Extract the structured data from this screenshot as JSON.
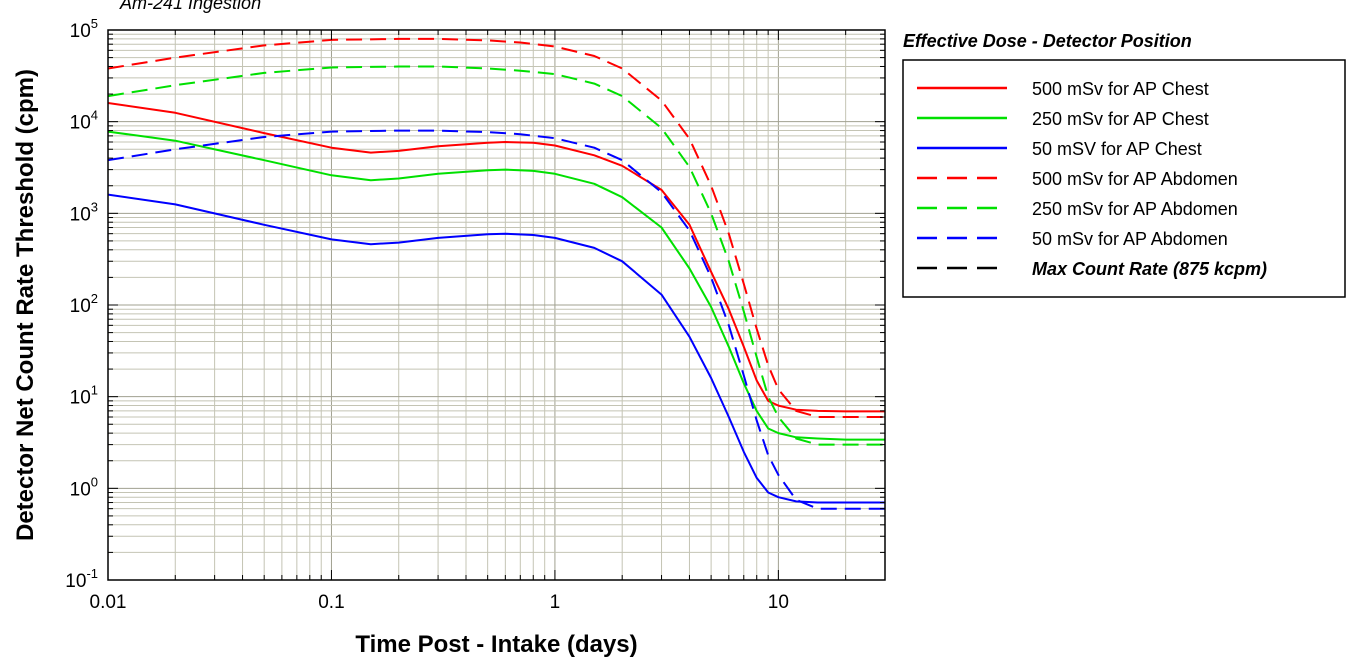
{
  "chart_data": {
    "type": "line",
    "subtitle": "Am-241 Ingestion",
    "xlabel": "Time Post - Intake (days)",
    "ylabel": "Detector Net Count Rate Threshold (cpm)",
    "x_scale": "log",
    "y_scale": "log",
    "xlim": [
      0.01,
      30
    ],
    "ylim": [
      0.1,
      100000
    ],
    "x_ticks": [
      {
        "value": 0.01,
        "label": "0.01"
      },
      {
        "value": 0.1,
        "label": "0.1"
      },
      {
        "value": 1,
        "label": "1"
      },
      {
        "value": 10,
        "label": "10"
      }
    ],
    "y_ticks": [
      {
        "value": 0.1,
        "base": "10",
        "exp": "-1"
      },
      {
        "value": 1,
        "base": "10",
        "exp": "0"
      },
      {
        "value": 10,
        "base": "10",
        "exp": "1"
      },
      {
        "value": 100,
        "base": "10",
        "exp": "2"
      },
      {
        "value": 1000,
        "base": "10",
        "exp": "3"
      },
      {
        "value": 10000,
        "base": "10",
        "exp": "4"
      },
      {
        "value": 100000,
        "base": "10",
        "exp": "5"
      }
    ],
    "grid": true,
    "legend": {
      "title": "Effective Dose - Detector Position",
      "placement": "right"
    },
    "series": [
      {
        "name": "500 mSv for AP Chest",
        "color": "#ff0000",
        "dash": "solid",
        "points": [
          [
            0.01,
            16000
          ],
          [
            0.02,
            12500
          ],
          [
            0.05,
            7500
          ],
          [
            0.1,
            5200
          ],
          [
            0.15,
            4600
          ],
          [
            0.2,
            4800
          ],
          [
            0.3,
            5400
          ],
          [
            0.5,
            5900
          ],
          [
            0.6,
            6000
          ],
          [
            0.8,
            5900
          ],
          [
            1,
            5500
          ],
          [
            1.5,
            4300
          ],
          [
            2,
            3300
          ],
          [
            3,
            1800
          ],
          [
            4,
            750
          ],
          [
            5,
            230
          ],
          [
            6,
            90
          ],
          [
            7,
            35
          ],
          [
            8,
            15
          ],
          [
            9,
            9
          ],
          [
            10,
            8
          ],
          [
            12,
            7.2
          ],
          [
            15,
            7
          ],
          [
            20,
            6.9
          ],
          [
            30,
            6.9
          ]
        ]
      },
      {
        "name": "250 mSv for AP Chest",
        "color": "#00e000",
        "dash": "solid",
        "points": [
          [
            0.01,
            7800
          ],
          [
            0.02,
            6200
          ],
          [
            0.05,
            3800
          ],
          [
            0.1,
            2600
          ],
          [
            0.15,
            2300
          ],
          [
            0.2,
            2400
          ],
          [
            0.3,
            2700
          ],
          [
            0.5,
            2950
          ],
          [
            0.6,
            3000
          ],
          [
            0.8,
            2900
          ],
          [
            1,
            2700
          ],
          [
            1.5,
            2100
          ],
          [
            2,
            1500
          ],
          [
            3,
            700
          ],
          [
            4,
            250
          ],
          [
            5,
            95
          ],
          [
            6,
            35
          ],
          [
            7,
            14
          ],
          [
            8,
            7
          ],
          [
            9,
            4.5
          ],
          [
            10,
            4
          ],
          [
            12,
            3.6
          ],
          [
            15,
            3.5
          ],
          [
            20,
            3.4
          ],
          [
            30,
            3.4
          ]
        ]
      },
      {
        "name": "50 mSV for AP Chest",
        "color": "#0000ff",
        "dash": "solid",
        "points": [
          [
            0.01,
            1600
          ],
          [
            0.02,
            1250
          ],
          [
            0.05,
            750
          ],
          [
            0.1,
            520
          ],
          [
            0.15,
            460
          ],
          [
            0.2,
            480
          ],
          [
            0.3,
            540
          ],
          [
            0.5,
            590
          ],
          [
            0.6,
            600
          ],
          [
            0.8,
            580
          ],
          [
            1,
            540
          ],
          [
            1.5,
            420
          ],
          [
            2,
            300
          ],
          [
            3,
            130
          ],
          [
            4,
            45
          ],
          [
            5,
            16
          ],
          [
            6,
            6
          ],
          [
            7,
            2.5
          ],
          [
            8,
            1.3
          ],
          [
            9,
            0.9
          ],
          [
            10,
            0.8
          ],
          [
            12,
            0.72
          ],
          [
            15,
            0.7
          ],
          [
            20,
            0.7
          ],
          [
            30,
            0.7
          ]
        ]
      },
      {
        "name": "500 mSv for AP Abdomen",
        "color": "#ff0000",
        "dash": "dashed",
        "points": [
          [
            0.01,
            38000
          ],
          [
            0.02,
            50000
          ],
          [
            0.05,
            68000
          ],
          [
            0.1,
            78000
          ],
          [
            0.2,
            80000
          ],
          [
            0.3,
            80000
          ],
          [
            0.5,
            77000
          ],
          [
            0.7,
            73000
          ],
          [
            1,
            66000
          ],
          [
            1.5,
            52000
          ],
          [
            2,
            38000
          ],
          [
            3,
            17000
          ],
          [
            4,
            6500
          ],
          [
            5,
            2000
          ],
          [
            6,
            600
          ],
          [
            7,
            170
          ],
          [
            8,
            55
          ],
          [
            9,
            22
          ],
          [
            10,
            12
          ],
          [
            12,
            7
          ],
          [
            15,
            6
          ],
          [
            20,
            6
          ],
          [
            30,
            6
          ]
        ]
      },
      {
        "name": "250 mSv for AP Abdomen",
        "color": "#00e000",
        "dash": "dashed",
        "points": [
          [
            0.01,
            19000
          ],
          [
            0.02,
            25000
          ],
          [
            0.05,
            34000
          ],
          [
            0.1,
            39000
          ],
          [
            0.2,
            40000
          ],
          [
            0.3,
            40000
          ],
          [
            0.5,
            38000
          ],
          [
            0.7,
            36000
          ],
          [
            1,
            33000
          ],
          [
            1.5,
            26000
          ],
          [
            2,
            19000
          ],
          [
            3,
            8500
          ],
          [
            4,
            3200
          ],
          [
            5,
            1000
          ],
          [
            6,
            300
          ],
          [
            7,
            85
          ],
          [
            8,
            27
          ],
          [
            9,
            10
          ],
          [
            10,
            6
          ],
          [
            12,
            3.5
          ],
          [
            15,
            3
          ],
          [
            20,
            3
          ],
          [
            30,
            3
          ]
        ]
      },
      {
        "name": "50 mSv for AP Abdomen",
        "color": "#0000ff",
        "dash": "dashed",
        "points": [
          [
            0.01,
            3800
          ],
          [
            0.02,
            5000
          ],
          [
            0.05,
            6800
          ],
          [
            0.1,
            7800
          ],
          [
            0.2,
            8000
          ],
          [
            0.3,
            8000
          ],
          [
            0.5,
            7700
          ],
          [
            0.7,
            7300
          ],
          [
            1,
            6600
          ],
          [
            1.5,
            5200
          ],
          [
            2,
            3800
          ],
          [
            3,
            1700
          ],
          [
            4,
            650
          ],
          [
            5,
            200
          ],
          [
            6,
            60
          ],
          [
            7,
            17
          ],
          [
            8,
            5.5
          ],
          [
            9,
            2.3
          ],
          [
            10,
            1.4
          ],
          [
            12,
            0.75
          ],
          [
            15,
            0.6
          ],
          [
            20,
            0.6
          ],
          [
            30,
            0.6
          ]
        ]
      },
      {
        "name": "Max Count Rate (875 kcpm)",
        "color": "#000000",
        "dash": "dashed",
        "emphasis": "bold-italic",
        "points": []
      }
    ]
  }
}
